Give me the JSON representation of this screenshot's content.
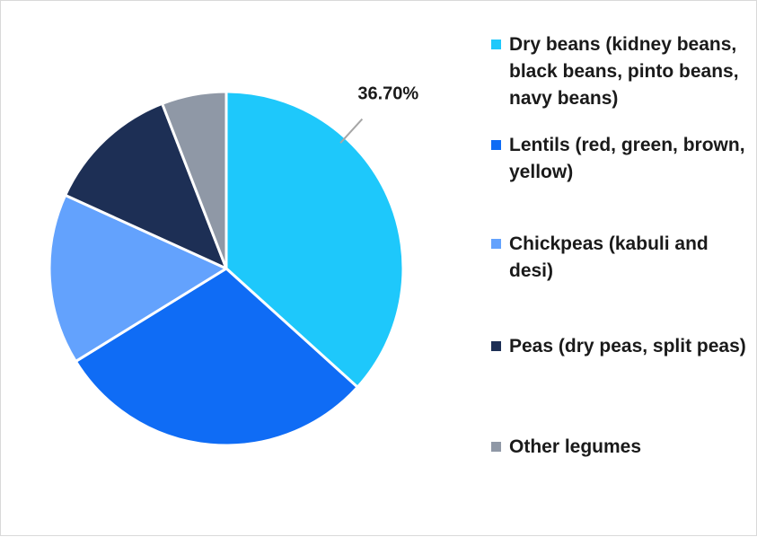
{
  "chart_data": {
    "type": "pie",
    "categories": [
      "Dry beans (kidney beans, black beans, pinto beans, navy beans)",
      "Lentils (red, green, brown, yellow)",
      "Chickpeas (kabuli and desi)",
      "Peas (dry peas, split peas)",
      "Other legumes"
    ],
    "values": [
      36.7,
      29.5,
      15.6,
      12.3,
      5.9
    ],
    "colors": [
      "#1ec8fb",
      "#0f6cf5",
      "#63a2fd",
      "#1d2f55",
      "#8f98a6"
    ],
    "data_labels": [
      "36.70%",
      "",
      "",
      "",
      ""
    ],
    "legend_position": "right",
    "start_angle_deg": 0,
    "direction": "clockwise"
  },
  "legend": {
    "items": [
      {
        "label": " Dry beans (kidney beans, black beans, pinto beans, navy beans)",
        "color": "#1ec8fb"
      },
      {
        "label": "Lentils (red, green, brown, yellow)",
        "color": "#0f6cf5"
      },
      {
        "label": "Chickpeas (kabuli and desi)",
        "color": "#63a2fd"
      },
      {
        "label": "Peas (dry peas, split peas)",
        "color": "#1d2f55"
      },
      {
        "label": "Other legumes",
        "color": "#8f98a6"
      }
    ]
  }
}
